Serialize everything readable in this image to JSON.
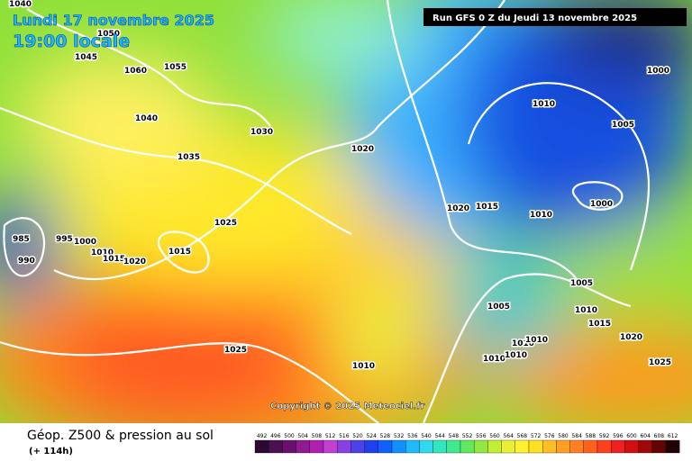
{
  "header": {
    "date": "Lundi 17 novembre 2025",
    "time": "19:00 locale",
    "run": "Run GFS 0 Z du Jeudi 13 novembre 2025"
  },
  "copyright": "Copyright © 2025 Meteociel.fr",
  "footer": {
    "title": "Géop. Z500 & pression au sol",
    "subtitle": "(+ 114h)"
  },
  "colorbar": {
    "labels": [
      492,
      496,
      500,
      504,
      508,
      512,
      516,
      520,
      524,
      528,
      532,
      536,
      540,
      544,
      548,
      552,
      556,
      560,
      564,
      568,
      572,
      576,
      580,
      584,
      588,
      592,
      596,
      600,
      604,
      608,
      612
    ]
  },
  "isobar_labels": [
    "1040",
    "1050",
    "1045",
    "1060",
    "1055",
    "1040",
    "1030",
    "1035",
    "1020",
    "1025",
    "1015",
    "985",
    "990",
    "995",
    "1000",
    "1010",
    "1015",
    "1020",
    "1025",
    "1010",
    "1000",
    "1010",
    "1005",
    "1000",
    "1010",
    "1015",
    "1020",
    "1005",
    "1005",
    "1010",
    "1015",
    "1020",
    "1010",
    "1010",
    "1010",
    "1010",
    "1025"
  ]
}
